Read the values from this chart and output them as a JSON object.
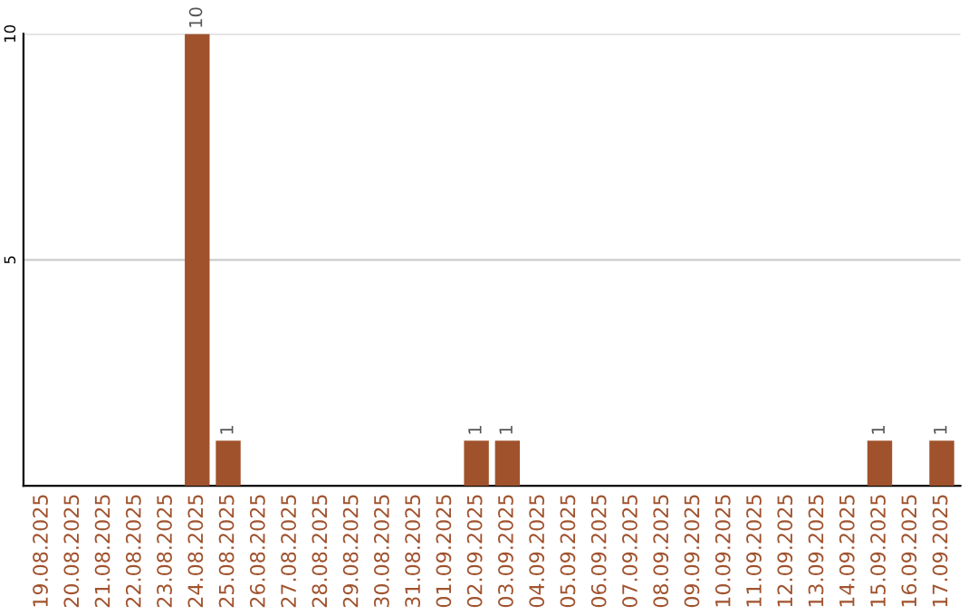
{
  "chart_data": {
    "type": "bar",
    "categories": [
      "19.08.2025",
      "20.08.2025",
      "21.08.2025",
      "22.08.2025",
      "23.08.2025",
      "24.08.2025",
      "25.08.2025",
      "26.08.2025",
      "27.08.2025",
      "28.08.2025",
      "29.08.2025",
      "30.08.2025",
      "31.08.2025",
      "01.09.2025",
      "02.09.2025",
      "03.09.2025",
      "04.09.2025",
      "05.09.2025",
      "06.09.2025",
      "07.09.2025",
      "08.09.2025",
      "09.09.2025",
      "10.09.2025",
      "11.09.2025",
      "12.09.2025",
      "13.09.2025",
      "14.09.2025",
      "15.09.2025",
      "16.09.2025",
      "17.09.2025"
    ],
    "values": [
      0,
      0,
      0,
      0,
      0,
      10,
      1,
      0,
      0,
      0,
      0,
      0,
      0,
      0,
      1,
      1,
      0,
      0,
      0,
      0,
      0,
      0,
      0,
      0,
      0,
      0,
      0,
      1,
      0,
      1
    ],
    "value_labels": [
      null,
      null,
      null,
      null,
      null,
      "10",
      "1",
      null,
      null,
      null,
      null,
      null,
      null,
      null,
      "1",
      "1",
      null,
      null,
      null,
      null,
      null,
      null,
      null,
      null,
      null,
      null,
      null,
      "1",
      null,
      "1"
    ],
    "color": "#a0522d",
    "ylim": [
      0,
      10
    ],
    "yticks": [
      5,
      10
    ],
    "grid": "y"
  }
}
